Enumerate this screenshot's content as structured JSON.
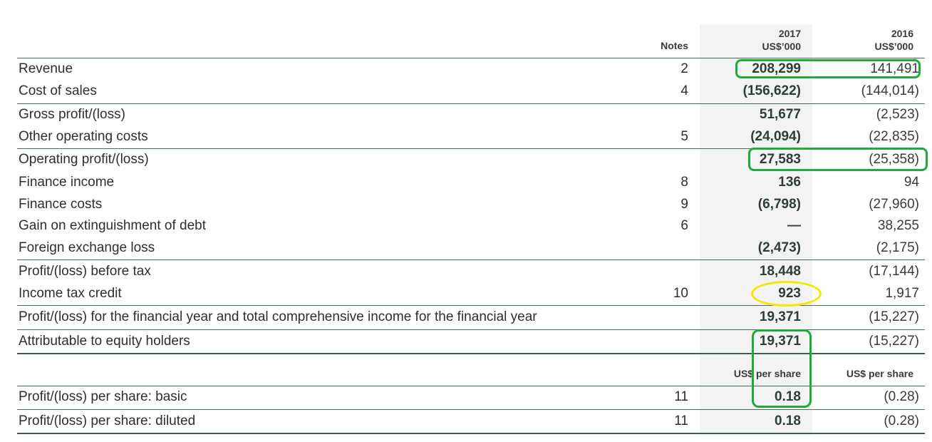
{
  "header": {
    "notes": "Notes",
    "year_2017": "2017",
    "unit_2017": "US$’000",
    "year_2016": "2016",
    "unit_2016": "US$’000",
    "per_share_2017": "US$ per share",
    "per_share_2016": "US$ per share"
  },
  "rows": [
    {
      "label": "Revenue",
      "note": "2",
      "v2017": "208,299",
      "v2016": "141,491"
    },
    {
      "label": "Cost of sales",
      "note": "4",
      "v2017": "(156,622)",
      "v2016": "(144,014)"
    },
    {
      "label": "Gross profit/(loss)",
      "note": "",
      "v2017": "51,677",
      "v2016": "(2,523)"
    },
    {
      "label": "Other operating costs",
      "note": "5",
      "v2017": "(24,094)",
      "v2016": "(22,835)"
    },
    {
      "label": "Operating profit/(loss)",
      "note": "",
      "v2017": "27,583",
      "v2016": "(25,358)"
    },
    {
      "label": "Finance income",
      "note": "8",
      "v2017": "136",
      "v2016": "94"
    },
    {
      "label": "Finance costs",
      "note": "9",
      "v2017": "(6,798)",
      "v2016": "(27,960)"
    },
    {
      "label": "Gain on extinguishment of debt",
      "note": "6",
      "v2017": "—",
      "v2016": "38,255"
    },
    {
      "label": "Foreign exchange loss",
      "note": "",
      "v2017": "(2,473)",
      "v2016": "(2,175)"
    },
    {
      "label": "Profit/(loss) before tax",
      "note": "",
      "v2017": "18,448",
      "v2016": "(17,144)"
    },
    {
      "label": "Income tax credit",
      "note": "10",
      "v2017": "923",
      "v2016": "1,917"
    },
    {
      "label": "Profit/(loss) for the financial year and total comprehensive income for the financial year",
      "note": "",
      "v2017": "19,371",
      "v2016": "(15,227)"
    },
    {
      "label": "Attributable to equity holders",
      "note": "",
      "v2017": "19,371",
      "v2016": "(15,227)"
    },
    {
      "label": "Profit/(loss) per share: basic",
      "note": "11",
      "v2017": "0.18",
      "v2016": "(0.28)"
    },
    {
      "label": "Profit/(loss) per share: diluted",
      "note": "11",
      "v2017": "0.18",
      "v2016": "(0.28)"
    }
  ],
  "colors": {
    "highlight_green": "#1faa3a",
    "highlight_yellow": "#f2ea00",
    "column_shade": "#f3f3f3",
    "rule": "#4a6a5a"
  }
}
